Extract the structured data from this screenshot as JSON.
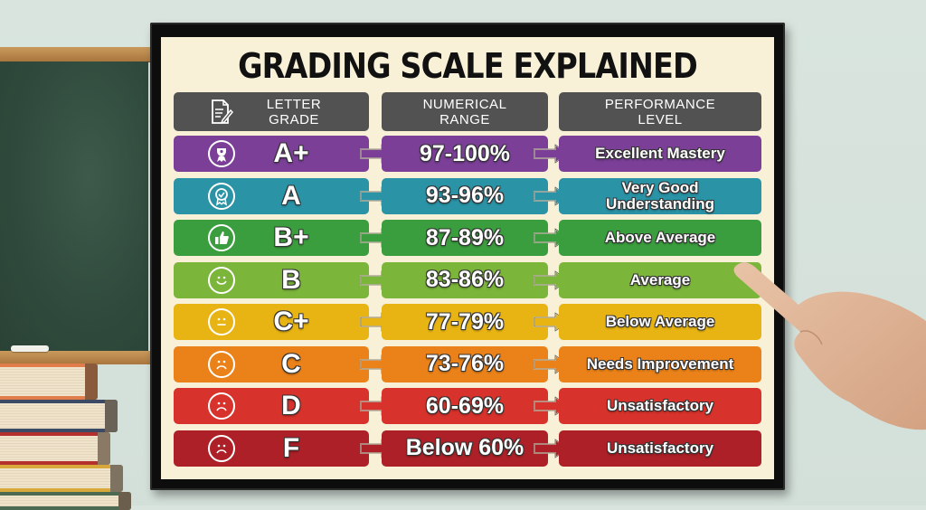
{
  "poster": {
    "title": "GRADING SCALE EXPLAINED",
    "headers": {
      "letter_grade": "LETTER GRADE",
      "numerical_range": "NUMERICAL RANGE",
      "performance_level": "PERFORMANCE LEVEL",
      "icon": "document-pencil-icon"
    },
    "rows": [
      {
        "grade": "A+",
        "range": "97-100%",
        "level": "Excellent Mastery",
        "icon": "trophy-ribbon-icon",
        "color": "#7b3f98"
      },
      {
        "grade": "A",
        "range": "93-96%",
        "level": "Very Good Understanding",
        "icon": "award-badge-icon",
        "color": "#2a93a6"
      },
      {
        "grade": "B+",
        "range": "87-89%",
        "level": "Above Average",
        "icon": "thumbs-up-icon",
        "color": "#3b9e3e"
      },
      {
        "grade": "B",
        "range": "83-86%",
        "level": "Average",
        "icon": "smiley-face-icon",
        "color": "#7bb53a"
      },
      {
        "grade": "C+",
        "range": "77-79%",
        "level": "Below Average",
        "icon": "neutral-face-icon",
        "color": "#e8b413"
      },
      {
        "grade": "C",
        "range": "73-76%",
        "level": "Needs Improvement",
        "icon": "frown-face-icon",
        "color": "#ea8219"
      },
      {
        "grade": "D",
        "range": "60-69%",
        "level": "Unsatisfactory",
        "icon": "frown-face-icon",
        "color": "#d7322b"
      },
      {
        "grade": "F",
        "range": "Below 60%",
        "level": "Unsatisfactory",
        "icon": "frown-face-icon",
        "color": "#ad2027"
      }
    ]
  },
  "colors": {
    "header_bg": "#525252",
    "poster_bg": "#f8f1d7",
    "frame": "#0d0d0d",
    "wall": "#d6e2dc",
    "chalkboard": "#2f4a3c"
  }
}
